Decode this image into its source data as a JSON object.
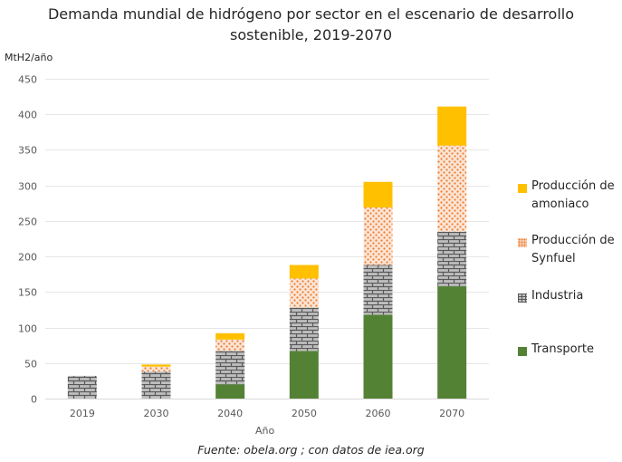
{
  "chart_data": {
    "type": "bar",
    "stacked": true,
    "title_lines": [
      "Demanda mundial de hidrógeno por sector en el escenario de desarrollo",
      "sostenible, 2019-2070"
    ],
    "ylabel": "MtH2/año",
    "xlabel": "Año",
    "categories": [
      "2019",
      "2030",
      "2040",
      "2050",
      "2060",
      "2070"
    ],
    "ylim": [
      0,
      450
    ],
    "yticks": [
      0,
      50,
      100,
      150,
      200,
      250,
      300,
      350,
      400,
      450
    ],
    "grid": true,
    "legend_position": "right",
    "series": [
      {
        "name": "Transporte",
        "color": "#548235",
        "pattern": "solid",
        "values": [
          0,
          0,
          20,
          67,
          118,
          158
        ]
      },
      {
        "name": "Industria",
        "color": "#7f7f7f",
        "pattern": "brick",
        "values": [
          32,
          38,
          47,
          61,
          70,
          77
        ]
      },
      {
        "name": "Producción de Synfuel",
        "color": "#ed7d31",
        "pattern": "dots",
        "values": [
          0,
          7,
          16,
          41,
          81,
          121
        ]
      },
      {
        "name": "Producción de amoniaco",
        "color": "#ffc000",
        "pattern": "solid",
        "values": [
          0,
          3,
          9,
          19,
          36,
          55
        ]
      }
    ],
    "legend_order": [
      "Producción de amoniaco",
      "Producción de Synfuel",
      "Industria",
      "Transporte"
    ]
  },
  "source": "Fuente: obela.org ; con datos de iea.org"
}
